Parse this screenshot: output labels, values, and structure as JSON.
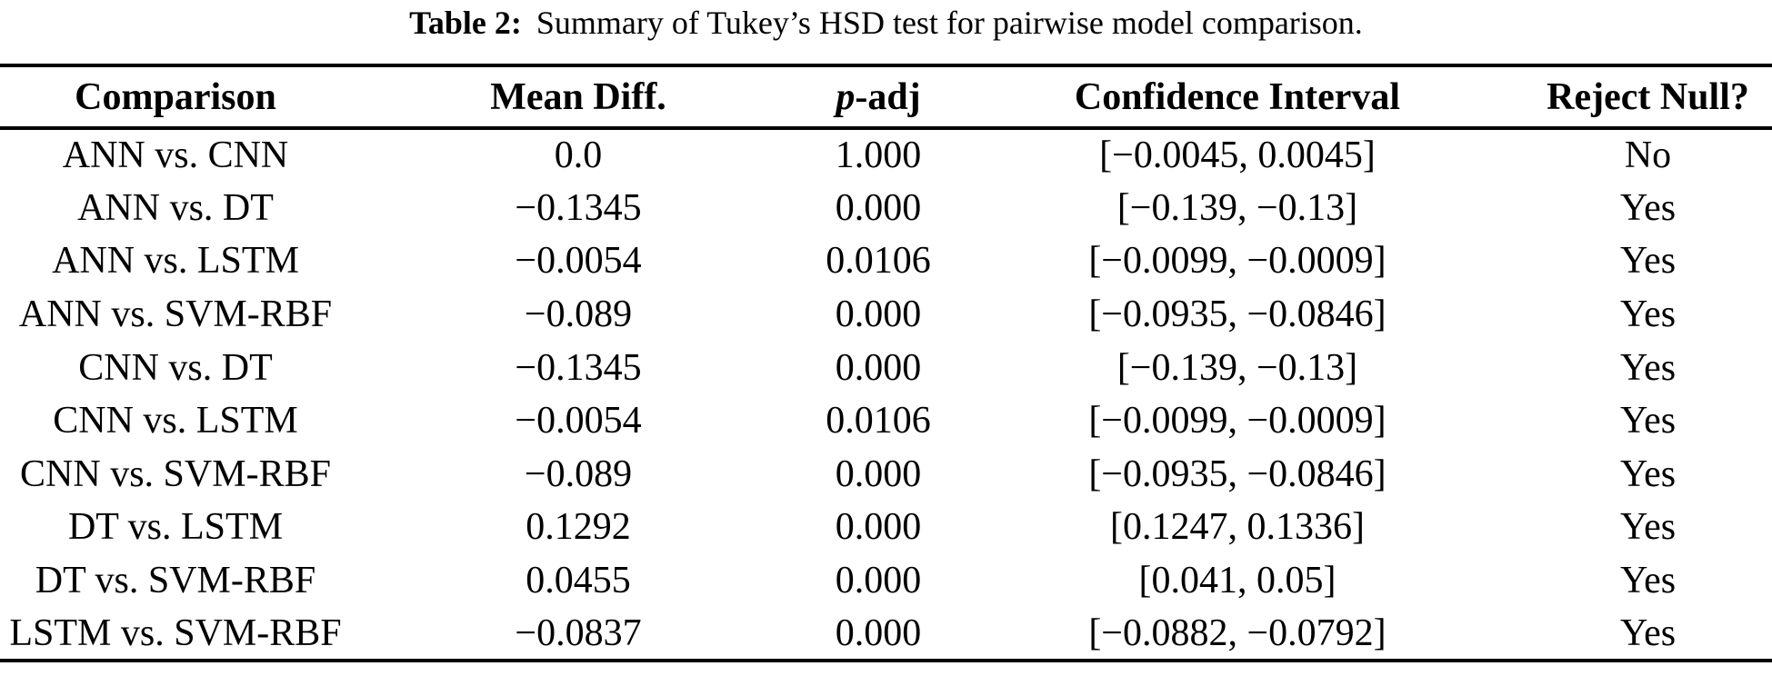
{
  "caption": {
    "label": "Table 2:",
    "text": "Summary of Tukey’s HSD test for pairwise model comparison."
  },
  "table": {
    "header": {
      "comparison": "Comparison",
      "mean_diff": "Mean Diff.",
      "p_italic": "p",
      "p_rest": "-adj",
      "ci": "Confidence Interval",
      "reject": "Reject Null?"
    },
    "rows": [
      [
        "ANN vs. CNN",
        "0.0",
        "1.000",
        "[−0.0045, 0.0045]",
        "No"
      ],
      [
        "ANN vs. DT",
        "−0.1345",
        "0.000",
        "[−0.139, −0.13]",
        "Yes"
      ],
      [
        "ANN vs. LSTM",
        "−0.0054",
        "0.0106",
        "[−0.0099, −0.0009]",
        "Yes"
      ],
      [
        "ANN vs. SVM-RBF",
        "−0.089",
        "0.000",
        "[−0.0935, −0.0846]",
        "Yes"
      ],
      [
        "CNN vs. DT",
        "−0.1345",
        "0.000",
        "[−0.139, −0.13]",
        "Yes"
      ],
      [
        "CNN vs. LSTM",
        "−0.0054",
        "0.0106",
        "[−0.0099, −0.0009]",
        "Yes"
      ],
      [
        "CNN vs. SVM-RBF",
        "−0.089",
        "0.000",
        "[−0.0935, −0.0846]",
        "Yes"
      ],
      [
        "DT vs. LSTM",
        "0.1292",
        "0.000",
        "[0.1247, 0.1336]",
        "Yes"
      ],
      [
        "DT vs. SVM-RBF",
        "0.0455",
        "0.000",
        "[0.041, 0.05]",
        "Yes"
      ],
      [
        "LSTM vs. SVM-RBF",
        "−0.0837",
        "0.000",
        "[−0.0882, −0.0792]",
        "Yes"
      ]
    ],
    "column_keys": [
      "comparison",
      "mean-diff",
      "p-adj",
      "confidence-interval",
      "reject-null"
    ]
  },
  "colors": {
    "text": "#000000",
    "background": "#ffffff",
    "rule": "#000000"
  }
}
